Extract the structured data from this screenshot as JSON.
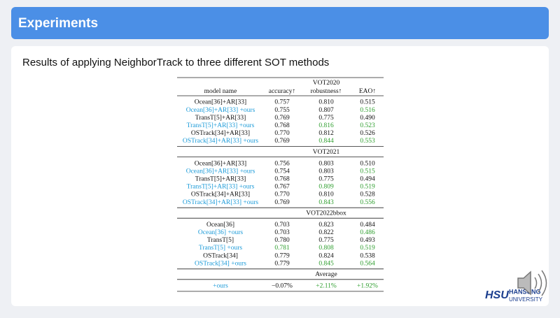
{
  "header": {
    "title": "Experiments"
  },
  "subtitle": "Results of applying NeighborTrack to three different SOT methods",
  "table": {
    "columns": [
      "model name",
      "accuracy↑",
      "robustness↑",
      "EAO↑"
    ],
    "sections": [
      {
        "title": "VOT2020",
        "rows": [
          {
            "name": "Ocean[36]+AR[33]",
            "ours": false,
            "cells": [
              "0.757",
              "0.810",
              "0.515"
            ],
            "green": [
              false,
              false,
              false
            ]
          },
          {
            "name": "Ocean[36]+AR[33] +ours",
            "ours": true,
            "cells": [
              "0.755",
              "0.807",
              "0.516"
            ],
            "green": [
              false,
              false,
              true
            ]
          },
          {
            "name": "TransT[5]+AR[33]",
            "ours": false,
            "cells": [
              "0.769",
              "0.775",
              "0.490"
            ],
            "green": [
              false,
              false,
              false
            ]
          },
          {
            "name": "TransT[5]+AR[33] +ours",
            "ours": true,
            "cells": [
              "0.768",
              "0.816",
              "0.523"
            ],
            "green": [
              false,
              true,
              true
            ]
          },
          {
            "name": "OSTrack[34]+AR[33]",
            "ours": false,
            "cells": [
              "0.770",
              "0.812",
              "0.526"
            ],
            "green": [
              false,
              false,
              false
            ]
          },
          {
            "name": "OSTrack[34]+AR[33] +ours",
            "ours": true,
            "cells": [
              "0.769",
              "0.844",
              "0.553"
            ],
            "green": [
              false,
              true,
              true
            ]
          }
        ]
      },
      {
        "title": "VOT2021",
        "rows": [
          {
            "name": "Ocean[36]+AR[33]",
            "ours": false,
            "cells": [
              "0.756",
              "0.803",
              "0.510"
            ],
            "green": [
              false,
              false,
              false
            ]
          },
          {
            "name": "Ocean[36]+AR[33] +ours",
            "ours": true,
            "cells": [
              "0.754",
              "0.803",
              "0.515"
            ],
            "green": [
              false,
              false,
              true
            ]
          },
          {
            "name": "TransT[5]+AR[33]",
            "ours": false,
            "cells": [
              "0.768",
              "0.775",
              "0.494"
            ],
            "green": [
              false,
              false,
              false
            ]
          },
          {
            "name": "TransT[5]+AR[33] +ours",
            "ours": true,
            "cells": [
              "0.767",
              "0.809",
              "0.519"
            ],
            "green": [
              false,
              true,
              true
            ]
          },
          {
            "name": "OSTrack[34]+AR[33]",
            "ours": false,
            "cells": [
              "0.770",
              "0.810",
              "0.528"
            ],
            "green": [
              false,
              false,
              false
            ]
          },
          {
            "name": "OSTrack[34]+AR[33] +ours",
            "ours": true,
            "cells": [
              "0.769",
              "0.843",
              "0.556"
            ],
            "green": [
              false,
              true,
              true
            ]
          }
        ]
      },
      {
        "title": "VOT2022bbox",
        "rows": [
          {
            "name": "Ocean[36]",
            "ours": false,
            "cells": [
              "0.703",
              "0.823",
              "0.484"
            ],
            "green": [
              false,
              false,
              false
            ]
          },
          {
            "name": "Ocean[36] +ours",
            "ours": true,
            "cells": [
              "0.703",
              "0.822",
              "0.486"
            ],
            "green": [
              false,
              false,
              true
            ]
          },
          {
            "name": "TransT[5]",
            "ours": false,
            "cells": [
              "0.780",
              "0.775",
              "0.493"
            ],
            "green": [
              false,
              false,
              false
            ]
          },
          {
            "name": "TransT[5] +ours",
            "ours": true,
            "cells": [
              "0.781",
              "0.808",
              "0.519"
            ],
            "green": [
              true,
              true,
              true
            ]
          },
          {
            "name": "OSTrack[34]",
            "ours": false,
            "cells": [
              "0.779",
              "0.824",
              "0.538"
            ],
            "green": [
              false,
              false,
              false
            ]
          },
          {
            "name": "OSTrack[34] +ours",
            "ours": true,
            "cells": [
              "0.779",
              "0.845",
              "0.564"
            ],
            "green": [
              false,
              true,
              true
            ]
          }
        ]
      },
      {
        "title": "Average",
        "rows": [
          {
            "name": "+ours",
            "ours": true,
            "cells": [
              "−0.07%",
              "+2.11%",
              "+1.92%"
            ],
            "green": [
              false,
              true,
              true
            ]
          }
        ]
      }
    ]
  },
  "logo": {
    "mark": "HSU",
    "name": "HANSUNG",
    "sub": "UNIVERSITY"
  }
}
